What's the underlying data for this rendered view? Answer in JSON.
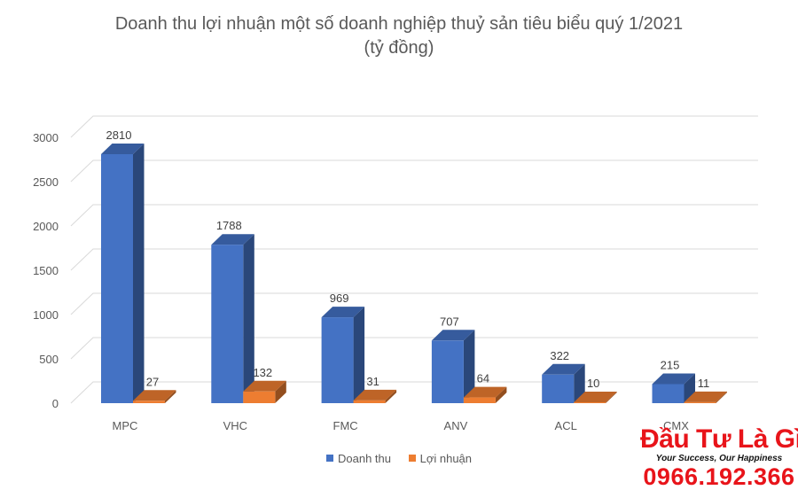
{
  "chart_data": {
    "type": "bar",
    "title": "Doanh thu lợi nhuận một số doanh nghiệp thuỷ sản tiêu biểu quý 1/2021",
    "subtitle": "(tỷ đồng)",
    "categories": [
      "MPC",
      "VHC",
      "FMC",
      "ANV",
      "ACL",
      "CMX"
    ],
    "series": [
      {
        "name": "Doanh thu",
        "values": [
          2810,
          1788,
          969,
          707,
          322,
          215
        ],
        "color": "#4472c4"
      },
      {
        "name": "Lợi nhuận",
        "values": [
          27,
          132,
          31,
          64,
          10,
          11
        ],
        "color": "#ed7d31"
      }
    ],
    "data_labels": [
      [
        "2810",
        "1788",
        "969",
        "707",
        "322",
        "215"
      ],
      [
        "27",
        "132",
        "31",
        "64",
        "10",
        "11"
      ]
    ],
    "yticks": [
      "0",
      "500",
      "1000",
      "1500",
      "2000",
      "2500",
      "3000"
    ],
    "ylim": [
      0,
      3000
    ],
    "grid": true,
    "style": "3d-clustered-column",
    "legend_position": "bottom"
  },
  "watermark": {
    "brand": "Đầu Tư Là Gì",
    "slogan": "Your Success, Our Happiness",
    "phone": "0966.192.366"
  }
}
